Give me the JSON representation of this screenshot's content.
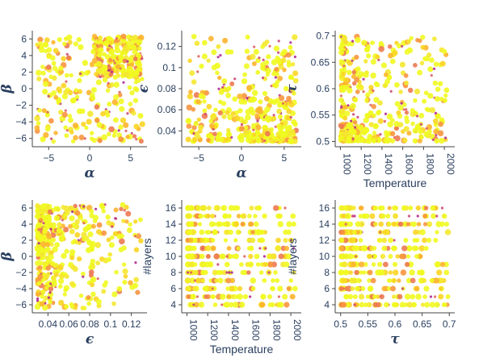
{
  "colors": {
    "axis": "#444444",
    "text": "#2a3f5f",
    "points": [
      "#f0f921",
      "#f4e82f",
      "#fbd524",
      "#fdb42f",
      "#f89540",
      "#ed7953",
      "#e16462",
      "#cc4778",
      "#b12a90"
    ]
  },
  "chart_data": [
    {
      "type": "scatter",
      "id": "alpha-beta",
      "xlabel": "α",
      "ylabel": "β",
      "xlim": [
        -7,
        7
      ],
      "ylim": [
        -7,
        7
      ],
      "xticks": [
        -5,
        0,
        5
      ],
      "xtick_labels": [
        "−5",
        "0",
        "5"
      ],
      "yticks": [
        -6,
        -4,
        -2,
        0,
        2,
        4,
        6
      ],
      "ytick_labels": [
        "−6",
        "−4",
        "−2",
        "0",
        "2",
        "4",
        "6"
      ],
      "x_distribution": "uniform",
      "y_distribution": "uniform",
      "dense_region": "upper-right"
    },
    {
      "type": "scatter",
      "id": "alpha-epsilon",
      "xlabel": "α",
      "ylabel": "ϵ",
      "xlim": [
        -7,
        7
      ],
      "ylim": [
        0.025,
        0.135
      ],
      "xticks": [
        -5,
        0,
        5
      ],
      "xtick_labels": [
        "−5",
        "0",
        "5"
      ],
      "yticks": [
        0.04,
        0.06,
        0.08,
        0.1,
        0.12
      ],
      "ytick_labels": [
        "0.04",
        "0.06",
        "0.08",
        "0.1",
        "0.12"
      ],
      "x_distribution": "uniform",
      "y_distribution": "log-uniform",
      "dense_region": "bottom-right"
    },
    {
      "type": "scatter",
      "id": "temperature-tau",
      "xlabel": "Temperature",
      "ylabel": "τ",
      "xlim": [
        950,
        2100
      ],
      "ylim": [
        0.49,
        0.71
      ],
      "xticks": [
        1000,
        1200,
        1400,
        1600,
        1800,
        2000
      ],
      "xtick_labels": [
        "1000",
        "1200",
        "1400",
        "1600",
        "1800",
        "2000"
      ],
      "xtick_rotate": true,
      "yticks": [
        0.5,
        0.55,
        0.6,
        0.65,
        0.7
      ],
      "ytick_labels": [
        "0.5",
        "0.55",
        "0.6",
        "0.65",
        "0.7"
      ],
      "x_distribution": "skew-low",
      "y_distribution": "skew-low",
      "dense_region": "bottom-left"
    },
    {
      "type": "scatter",
      "id": "epsilon-beta",
      "xlabel": "ϵ",
      "ylabel": "β",
      "xlim": [
        0.025,
        0.135
      ],
      "ylim": [
        -7,
        7
      ],
      "xticks": [
        0.04,
        0.06,
        0.08,
        0.1,
        0.12
      ],
      "xtick_labels": [
        "0.04",
        "0.06",
        "0.08",
        "0.1",
        "0.12"
      ],
      "yticks": [
        -6,
        -4,
        -2,
        0,
        2,
        4,
        6
      ],
      "ytick_labels": [
        "−6",
        "−4",
        "−2",
        "0",
        "2",
        "4",
        "6"
      ],
      "x_distribution": "log-uniform",
      "y_distribution": "uniform",
      "dense_region": "top-left"
    },
    {
      "type": "scatter",
      "id": "temperature-layers",
      "xlabel": "Temperature",
      "ylabel": "#layers",
      "xlim": [
        950,
        2100
      ],
      "ylim": [
        3,
        17
      ],
      "xticks": [
        1000,
        1200,
        1400,
        1600,
        1800,
        2000
      ],
      "xtick_labels": [
        "1000",
        "1200",
        "1400",
        "1600",
        "1800",
        "2000"
      ],
      "xtick_rotate": true,
      "yticks": [
        4,
        6,
        8,
        10,
        12,
        14,
        16
      ],
      "ytick_labels": [
        "4",
        "6",
        "8",
        "10",
        "12",
        "14",
        "16"
      ],
      "x_distribution": "skew-low",
      "y_distribution": "integer-4-16",
      "dense_region": "left"
    },
    {
      "type": "scatter",
      "id": "tau-layers",
      "xlabel": "τ",
      "ylabel": "#layers",
      "xlim": [
        0.49,
        0.71
      ],
      "ylim": [
        3,
        17
      ],
      "xticks": [
        0.5,
        0.55,
        0.6,
        0.65,
        0.7
      ],
      "xtick_labels": [
        "0.5",
        "0.55",
        "0.6",
        "0.65",
        "0.7"
      ],
      "yticks": [
        4,
        6,
        8,
        10,
        12,
        14,
        16
      ],
      "ytick_labels": [
        "4",
        "6",
        "8",
        "10",
        "12",
        "14",
        "16"
      ],
      "x_distribution": "skew-low",
      "y_distribution": "integer-4-16",
      "dense_region": "left"
    }
  ]
}
